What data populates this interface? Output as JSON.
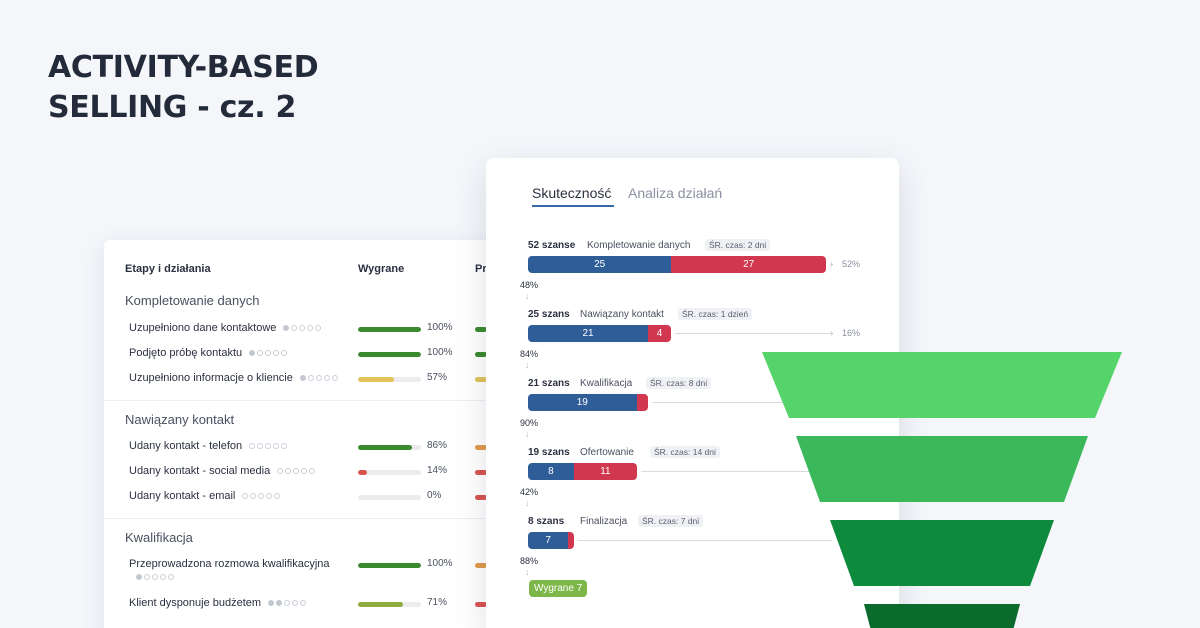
{
  "headline": {
    "line1": "ACTIVITY-BASED",
    "line2": "SELLING - cz. 2"
  },
  "stages_table": {
    "header_stages": "Etapy i działania",
    "header_won": "Wygrane",
    "header_lost_clipped": "Pr",
    "sections": [
      {
        "title": "Kompletowanie danych",
        "rows": [
          {
            "label": "Uzupełniono dane kontaktowe",
            "dots_filled": 1,
            "won_pct": 100,
            "won_text": "100%",
            "won_color": "#3a8a2e",
            "lost_color": "#3a8a2e"
          },
          {
            "label": "Podjęto próbę kontaktu",
            "dots_filled": 1,
            "won_pct": 100,
            "won_text": "100%",
            "won_color": "#3a8a2e",
            "lost_color": "#3a8a2e"
          },
          {
            "label": "Uzupełniono informacje o kliencie",
            "dots_filled": 1,
            "won_pct": 57,
            "won_text": "57%",
            "won_color": "#e1c35a",
            "lost_color": "#e1c35a"
          }
        ]
      },
      {
        "title": "Nawiązany kontakt",
        "rows": [
          {
            "label": "Udany kontakt - telefon",
            "dots_filled": 0,
            "won_pct": 86,
            "won_text": "86%",
            "won_color": "#3a8a2e",
            "lost_color": "#e09a4a"
          },
          {
            "label": "Udany kontakt - social media",
            "dots_filled": 0,
            "won_pct": 14,
            "won_text": "14%",
            "won_color": "#d9534f",
            "lost_color": "#d9534f"
          },
          {
            "label": "Udany kontakt - email",
            "dots_filled": 0,
            "won_pct": 0,
            "won_text": "0%",
            "won_color": "#d9534f",
            "lost_color": "#d9534f"
          }
        ]
      },
      {
        "title": "Kwalifikacja",
        "rows": [
          {
            "label": "Przeprowadzona rozmowa kwalifikacyjna",
            "dots_filled": 1,
            "won_pct": 100,
            "won_text": "100%",
            "won_color": "#3a8a2e",
            "lost_color": "#e09a4a"
          },
          {
            "label": "Klient dysponuje budżetem",
            "dots_filled": 2,
            "won_pct": 71,
            "won_text": "71%",
            "won_color": "#8faa3e",
            "lost_color": "#d9534f"
          }
        ]
      }
    ]
  },
  "funnel_card": {
    "tabs": [
      {
        "label": "Skuteczność",
        "active": true
      },
      {
        "label": "Analiza działań",
        "active": false
      }
    ],
    "stages": [
      {
        "count_label": "52 szanse",
        "name": "Kompletowanie danych",
        "badge": "ŚR. czas: 2 dni",
        "won": 25,
        "lost": 27,
        "drop_text": "52%",
        "conversion_text": "48%"
      },
      {
        "count_label": "25 szans",
        "name": "Nawiązany kontakt",
        "badge": "ŚR. czas: 1 dzień",
        "won": 21,
        "lost": 4,
        "drop_text": "16%",
        "conversion_text": "84%"
      },
      {
        "count_label": "21 szans",
        "name": "Kwalifikacja",
        "badge": "ŚR. czas: 8 dni",
        "won": 19,
        "lost": 2,
        "drop_text": "",
        "conversion_text": "90%"
      },
      {
        "count_label": "19 szans",
        "name": "Ofertowanie",
        "badge": "ŚR. czas: 14 dni",
        "won": 8,
        "lost": 11,
        "drop_text": "",
        "conversion_text": "42%"
      },
      {
        "count_label": "8 szans",
        "name": "Finalizacja",
        "badge": "ŚR. czas: 7 dni",
        "won": 7,
        "lost": 1,
        "drop_text": "",
        "conversion_text": "88%"
      }
    ],
    "won_badge": "Wygrane 7"
  },
  "colors": {
    "blue_segment": "#2f5d98",
    "red_segment": "#d1384f",
    "funnel_green_1": "#55d46a",
    "funnel_green_2": "#3ab85a",
    "funnel_green_3": "#0e8a3c",
    "funnel_green_4": "#0a6b2c"
  }
}
